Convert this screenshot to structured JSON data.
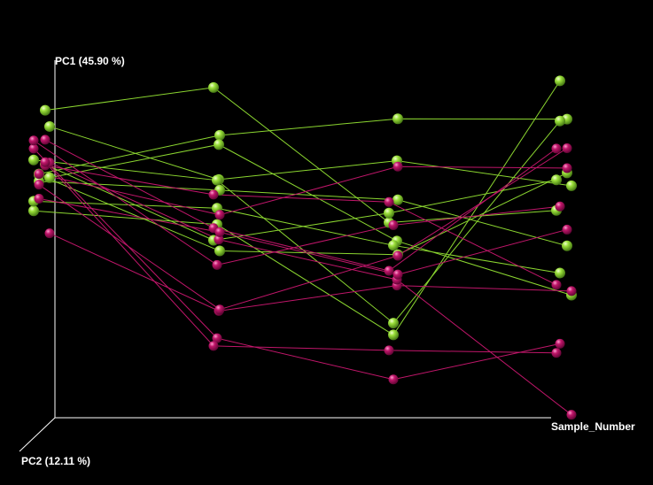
{
  "chart_data": {
    "type": "scatter",
    "projection": "3d-pcoa",
    "axes": {
      "x_label": "Sample_Number",
      "y_label": "PC1 (45.90 %)",
      "z_label": "PC2 (12.11 %)"
    },
    "grid": false,
    "legend": "none",
    "background": "#000000",
    "series": [
      {
        "color": "#8bd630",
        "x": [
          1,
          2,
          3,
          4
        ],
        "traces": [
          [
            56.2,
            52.5,
            22.5,
            91.5
          ],
          [
            66.2,
            76.7,
            81.2,
            81.1
          ],
          [
            83.5,
            89.7,
            53.0,
            56.3
          ],
          [
            79.1,
            64.7,
            69.8,
            63.0
          ],
          [
            70.0,
            64.5,
            25.7,
            80.6
          ],
          [
            66.0,
            45.3,
            44.3,
            66.5
          ],
          [
            68.8,
            48.2,
            55.6,
            64.6
          ],
          [
            65.2,
            74.2,
            48.0,
            33.3
          ],
          [
            58.8,
            56.9,
            46.8,
            39.3
          ],
          [
            64.2,
            61.8,
            59.2,
            46.7
          ]
        ]
      },
      {
        "color": "#c0166a",
        "x": [
          1,
          2,
          3,
          4
        ],
        "traces": [
          [
            66.2,
            55.1,
            68.2,
            67.8
          ],
          [
            68.5,
            60.6,
            58.6,
            36.1
          ],
          [
            50.1,
            29.0,
            35.9,
            34.4
          ],
          [
            73.1,
            21.6,
            10.4,
            20.1
          ],
          [
            63.3,
            29.4,
            44.0,
            73.2
          ],
          [
            75.5,
            51.5,
            39.9,
            73.1
          ],
          [
            69.3,
            48.4,
            37.5,
            0.8
          ],
          [
            75.3,
            41.5,
            52.3,
            57.4
          ],
          [
            59.5,
            50.4,
            38.9,
            51.1
          ],
          [
            69.4,
            19.5,
            18.3,
            17.6
          ]
        ]
      }
    ]
  }
}
